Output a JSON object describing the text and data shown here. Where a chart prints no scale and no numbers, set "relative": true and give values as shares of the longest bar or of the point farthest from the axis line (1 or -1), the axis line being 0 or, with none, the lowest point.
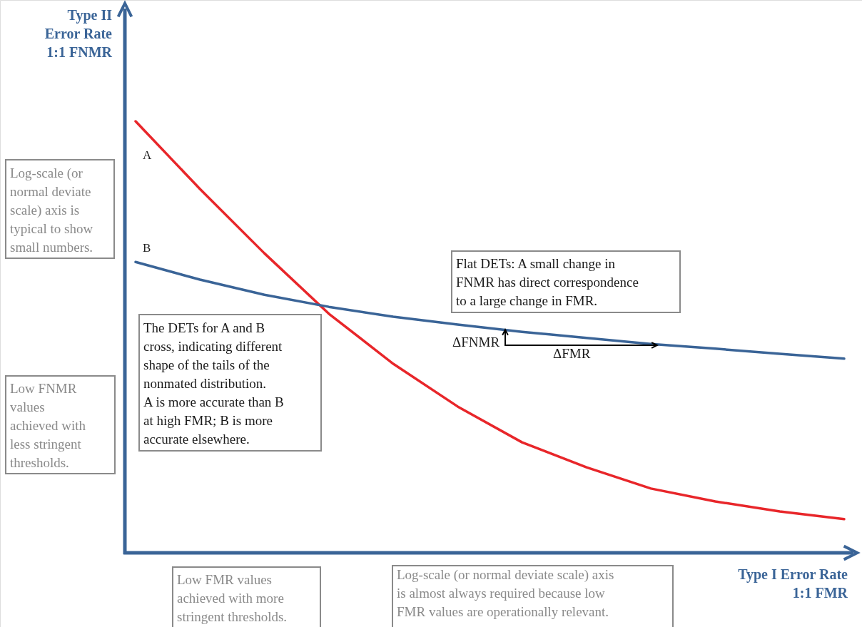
{
  "chart_data": {
    "type": "line",
    "relative": true,
    "marker": "none",
    "line_style": "solid",
    "xlabel": "Type I Error Rate 1:1 FMR",
    "ylabel": "Type II Error Rate 1:1 FNMR",
    "categories": [
      null,
      null,
      null,
      null,
      null,
      null,
      null,
      null,
      null,
      null,
      null,
      null
    ],
    "series": [
      {
        "name": "A",
        "color": "#e8262a",
        "values": [
          1.0,
          0.843,
          0.694,
          0.554,
          0.438,
          0.339,
          0.256,
          0.198,
          0.149,
          0.119,
          0.096,
          0.078
        ]
      },
      {
        "name": "B",
        "color": "#3a6497",
        "values": [
          0.674,
          0.633,
          0.598,
          0.57,
          0.547,
          0.529,
          0.512,
          0.498,
          0.484,
          0.473,
          0.461,
          0.45
        ]
      }
    ],
    "annotations": [
      "Log-scale (or normal deviate scale) axis is typical to show small numbers.",
      "Low FNMR values achieved with less stringent thresholds.",
      "Low FMR values achieved with more stringent thresholds.",
      "Log-scale (or normal deviate scale) axis is almost always required because low FMR values are operationally relevant.",
      "The DETs for A and B cross, indicating different shape of the tails of the nonmated distribution. A is more accurate than B at high FMR; B is more accurate elsewhere.",
      "Flat DETs: A small change in FNMR has direct correspondence to a large change in FMR.",
      "ΔFNMR",
      "ΔFMR"
    ]
  }
}
